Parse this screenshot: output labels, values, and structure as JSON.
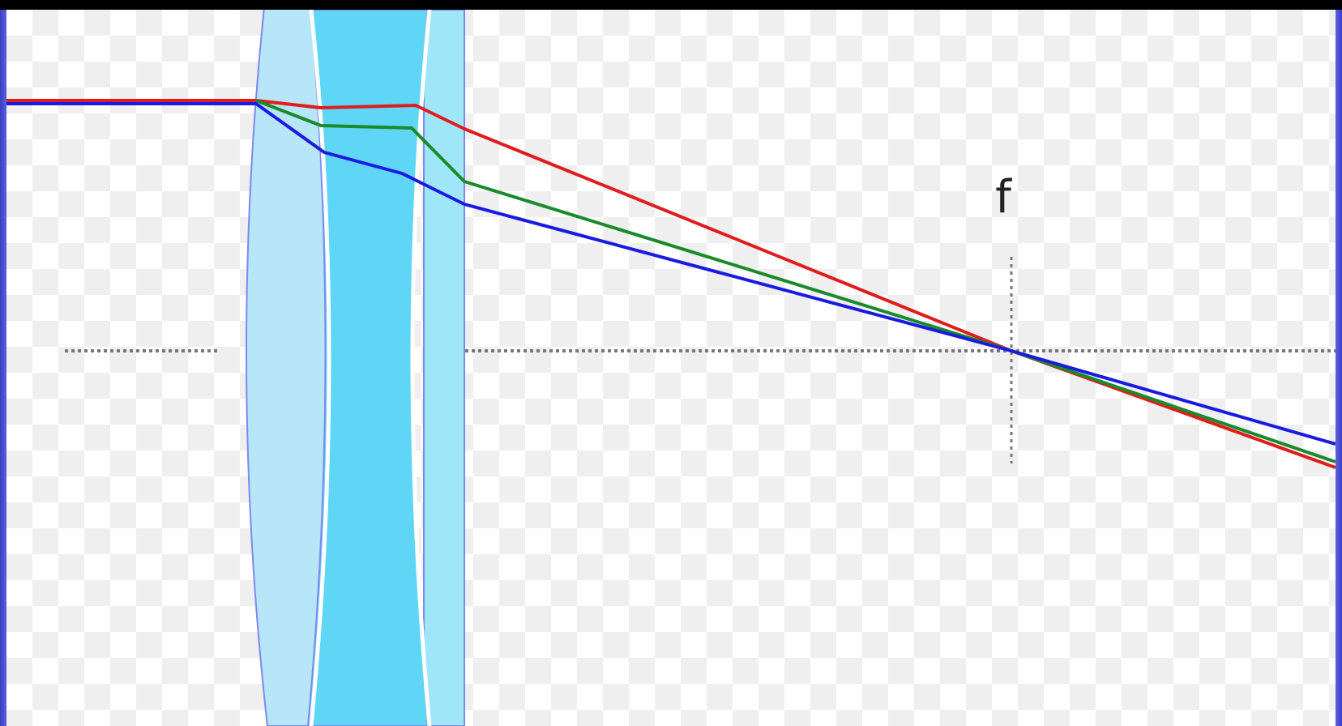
{
  "diagram": {
    "focal_label": "f",
    "colors": {
      "ray_red": "#e01c1c",
      "ray_green": "#1a8a2a",
      "ray_blue": "#1a1ae0",
      "lens_crown": "#b6e6f7",
      "lens_flint": "#5fd6f5",
      "lens_plate": "#9fe6f8",
      "lens_outline": "#7f88f0",
      "axis": "#777777",
      "frame": "#2a2fa8"
    },
    "rays": [
      "red",
      "green",
      "blue"
    ]
  }
}
